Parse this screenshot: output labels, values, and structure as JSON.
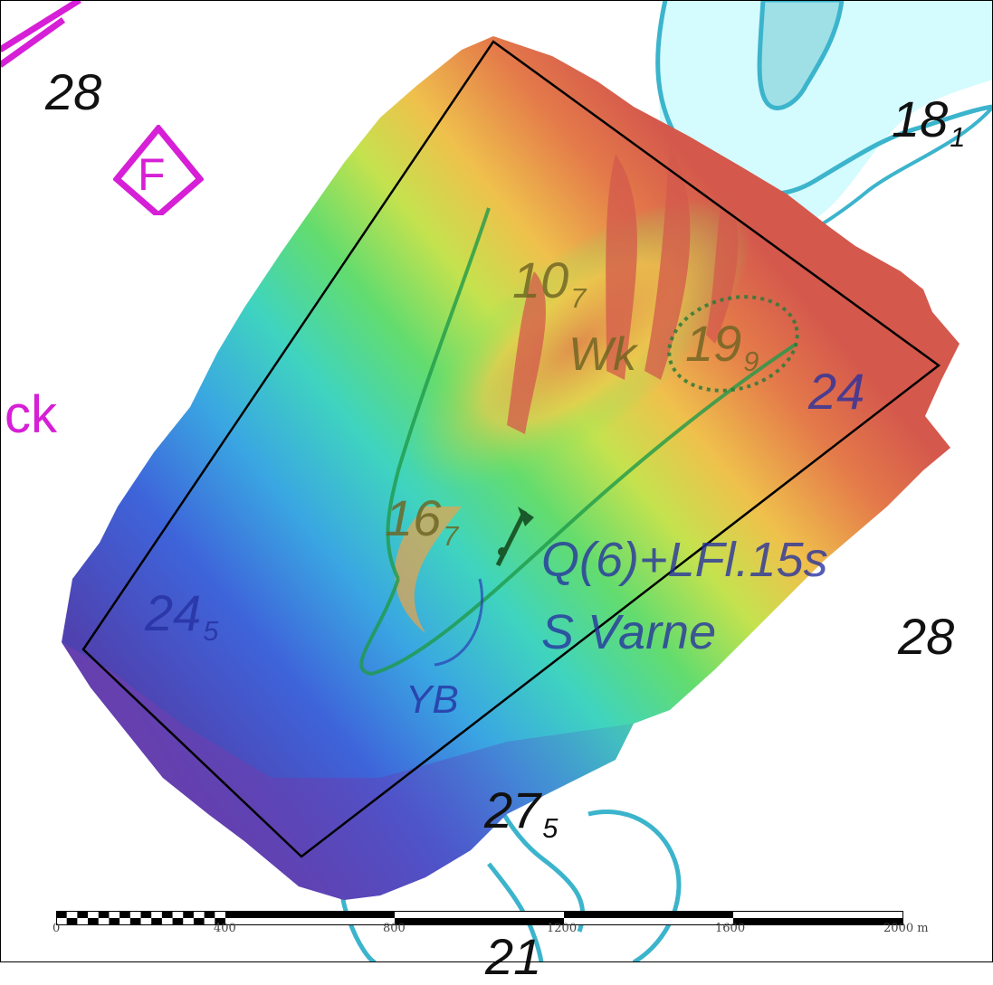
{
  "depths": {
    "d28_nw": "28",
    "d18": "18",
    "d18_sub": "1",
    "d10": "10",
    "d10_sub": "7",
    "d19": "19",
    "d19_sub": "9",
    "d24_e": "24",
    "d16": "16",
    "d16_sub": "7",
    "d24_w": "24",
    "d24_w_sub": "5",
    "d28_e": "28",
    "d27": "27",
    "d27_sub": "5",
    "d21": "21"
  },
  "labels": {
    "wreck": "Wk",
    "light": "Q(6)+LFl.15s",
    "buoy_name": "S Varne",
    "buoy_color": "YB",
    "edge_text": "ck",
    "buoy_letter": "F"
  },
  "scalebar": {
    "ticks": [
      "0",
      "400",
      "800",
      "1200",
      "1600",
      "2000 m"
    ]
  },
  "colors": {
    "land_shallow": "#d4fbfd",
    "contour": "#3bb4cc",
    "magenta": "#d61fd6",
    "boundary": "#000000"
  }
}
